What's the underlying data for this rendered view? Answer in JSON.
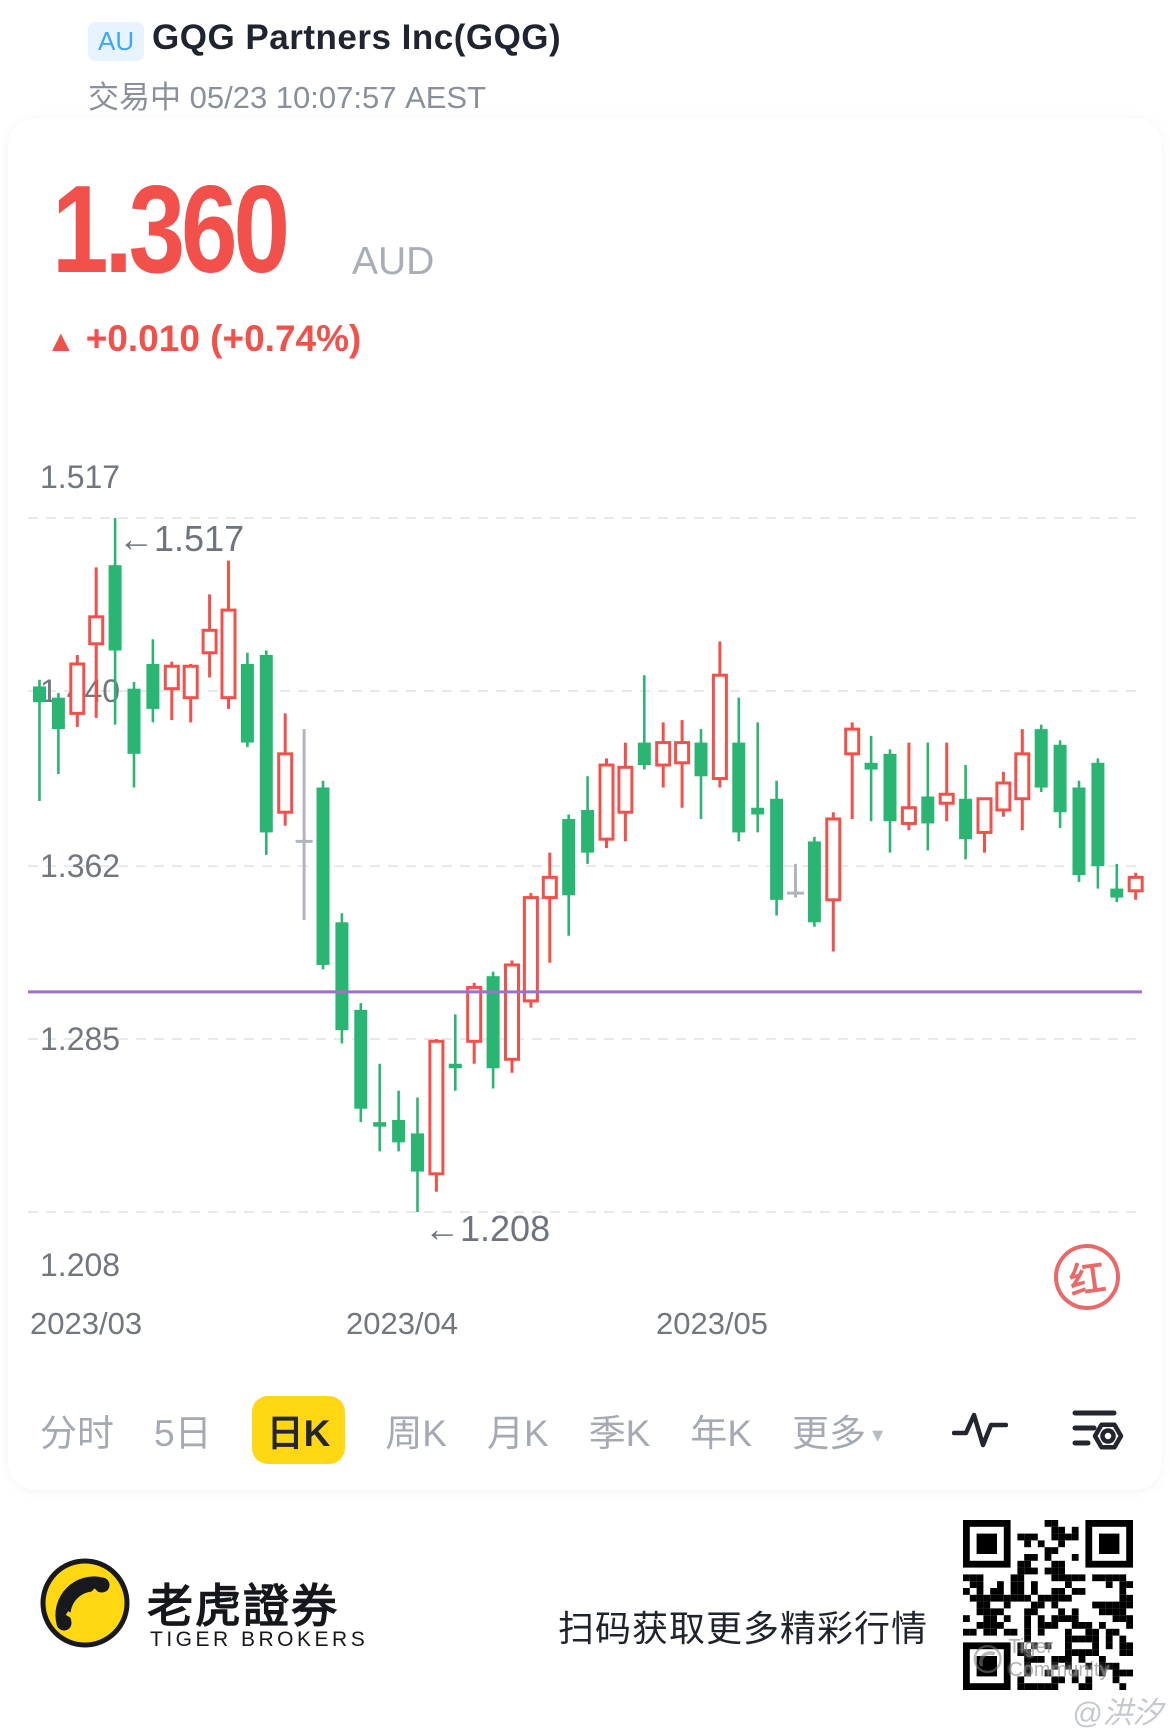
{
  "header": {
    "market_badge": "AU",
    "title": "GQG Partners Inc(GQG)",
    "status_line": "交易中 05/23 10:07:57 AEST"
  },
  "quote": {
    "price": "1.360",
    "currency": "AUD",
    "change_symbol": "▲",
    "change_text": "+0.010 (+0.74%)",
    "up_color": "#F2504B"
  },
  "chart_data": {
    "type": "candlestick",
    "convention": "CN colors: red hollow = up day, green solid = down day, gray = unchanged",
    "y_ticks": [
      "1.517",
      "1.440",
      "1.362",
      "1.285",
      "1.208"
    ],
    "x_ticks": [
      "2023/03",
      "2023/04",
      "2023/05"
    ],
    "ylim": [
      1.186,
      1.545
    ],
    "grid": "dashed horizontal",
    "high_annotation": "←1.517",
    "low_annotation": "←1.208",
    "purple_line": 1.306,
    "colors": {
      "up": "#F2504B",
      "down": "#2BB573",
      "neutral": "#B1B5BE",
      "purple": "#9B72C8",
      "grid": "#E7E9ED",
      "label": "#71767F"
    },
    "candles": [
      [
        1.442,
        1.445,
        1.391,
        1.435
      ],
      [
        1.437,
        1.439,
        1.403,
        1.423
      ],
      [
        1.43,
        1.456,
        1.424,
        1.452
      ],
      [
        1.461,
        1.495,
        1.428,
        1.473
      ],
      [
        1.496,
        1.517,
        1.425,
        1.458
      ],
      [
        1.441,
        1.444,
        1.397,
        1.412
      ],
      [
        1.452,
        1.463,
        1.426,
        1.432
      ],
      [
        1.441,
        1.453,
        1.427,
        1.451
      ],
      [
        1.437,
        1.452,
        1.426,
        1.451
      ],
      [
        1.457,
        1.483,
        1.446,
        1.467
      ],
      [
        1.437,
        1.498,
        1.432,
        1.476
      ],
      [
        1.452,
        1.457,
        1.415,
        1.417
      ],
      [
        1.456,
        1.458,
        1.367,
        1.377
      ],
      [
        1.386,
        1.43,
        1.38,
        1.412
      ],
      [
        1.373,
        1.423,
        1.338,
        1.373
      ],
      [
        1.397,
        1.4,
        1.316,
        1.318
      ],
      [
        1.337,
        1.341,
        1.283,
        1.289
      ],
      [
        1.298,
        1.301,
        1.248,
        1.254
      ],
      [
        1.248,
        1.274,
        1.235,
        1.246
      ],
      [
        1.249,
        1.262,
        1.235,
        1.239
      ],
      [
        1.243,
        1.259,
        1.208,
        1.226
      ],
      [
        1.225,
        1.285,
        1.217,
        1.284
      ],
      [
        1.274,
        1.296,
        1.262,
        1.272
      ],
      [
        1.284,
        1.31,
        1.274,
        1.308
      ],
      [
        1.313,
        1.315,
        1.263,
        1.272
      ],
      [
        1.276,
        1.32,
        1.27,
        1.318
      ],
      [
        1.302,
        1.35,
        1.299,
        1.348
      ],
      [
        1.348,
        1.368,
        1.319,
        1.357
      ],
      [
        1.383,
        1.385,
        1.331,
        1.349
      ],
      [
        1.387,
        1.402,
        1.363,
        1.368
      ],
      [
        1.374,
        1.41,
        1.37,
        1.407
      ],
      [
        1.386,
        1.417,
        1.373,
        1.406
      ],
      [
        1.417,
        1.447,
        1.405,
        1.407
      ],
      [
        1.407,
        1.426,
        1.397,
        1.417
      ],
      [
        1.408,
        1.427,
        1.388,
        1.417
      ],
      [
        1.417,
        1.423,
        1.383,
        1.402
      ],
      [
        1.401,
        1.462,
        1.397,
        1.447
      ],
      [
        1.417,
        1.437,
        1.373,
        1.377
      ],
      [
        1.388,
        1.426,
        1.377,
        1.385
      ],
      [
        1.392,
        1.4,
        1.34,
        1.347
      ],
      [
        1.35,
        1.363,
        1.348,
        1.35
      ],
      [
        1.373,
        1.375,
        1.335,
        1.337
      ],
      [
        1.347,
        1.386,
        1.324,
        1.383
      ],
      [
        1.412,
        1.426,
        1.383,
        1.423
      ],
      [
        1.408,
        1.42,
        1.382,
        1.405
      ],
      [
        1.412,
        1.414,
        1.368,
        1.382
      ],
      [
        1.381,
        1.417,
        1.378,
        1.388
      ],
      [
        1.393,
        1.417,
        1.369,
        1.381
      ],
      [
        1.39,
        1.417,
        1.382,
        1.394
      ],
      [
        1.392,
        1.407,
        1.365,
        1.374
      ],
      [
        1.377,
        1.392,
        1.368,
        1.392
      ],
      [
        1.387,
        1.404,
        1.384,
        1.399
      ],
      [
        1.392,
        1.423,
        1.378,
        1.412
      ],
      [
        1.423,
        1.425,
        1.395,
        1.397
      ],
      [
        1.416,
        1.418,
        1.379,
        1.386
      ],
      [
        1.397,
        1.4,
        1.355,
        1.358
      ],
      [
        1.408,
        1.41,
        1.352,
        1.362
      ],
      [
        1.352,
        1.363,
        1.346,
        1.348
      ],
      [
        1.351,
        1.359,
        1.347,
        1.357
      ]
    ],
    "neutral_indices": [
      14,
      40
    ]
  },
  "stamp": {
    "label": "红"
  },
  "toolbar": {
    "items": [
      {
        "key": "minute",
        "label": "分时"
      },
      {
        "key": "5day",
        "label": "5日"
      },
      {
        "key": "daily-k",
        "label": "日K",
        "active": true
      },
      {
        "key": "weekly-k",
        "label": "周K"
      },
      {
        "key": "monthly-k",
        "label": "月K"
      },
      {
        "key": "quarterly-k",
        "label": "季K"
      },
      {
        "key": "yearly-k",
        "label": "年K"
      },
      {
        "key": "more",
        "label": "更多",
        "caret": "▾"
      }
    ]
  },
  "footer": {
    "brand_cn": "老虎證券",
    "brand_en": "TIGER BROKERS",
    "promo": "扫码获取更多精彩行情",
    "qr_watermark": "Tiger Community",
    "watermark_handle": "@洪汐"
  }
}
